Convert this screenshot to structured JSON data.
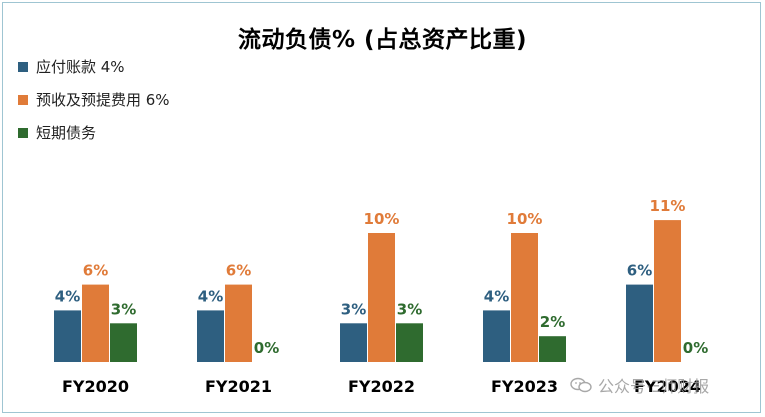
{
  "chart_data": {
    "type": "bar",
    "title": "流动负债% (占总资产比重)",
    "categories": [
      "FY2020",
      "FY2021",
      "FY2022",
      "FY2023",
      "FY2024"
    ],
    "series": [
      {
        "name": "应付账款 4%",
        "color": "#2e5f80",
        "values": [
          4,
          4,
          3,
          4,
          6
        ],
        "labels": [
          "4%",
          "4%",
          "3%",
          "4%",
          "6%"
        ]
      },
      {
        "name": "预收及预提费用 6%",
        "color": "#e07b39",
        "values": [
          6,
          6,
          10,
          10,
          11
        ],
        "labels": [
          "6%",
          "6%",
          "10%",
          "10%",
          "11%"
        ]
      },
      {
        "name": "短期债务",
        "color": "#2f6b2f",
        "values": [
          3,
          0,
          3,
          2,
          0
        ],
        "labels": [
          "3%",
          "0%",
          "3%",
          "2%",
          "0%"
        ]
      }
    ],
    "ylim": [
      0,
      11
    ],
    "legend_position": "top-left",
    "grid": false
  },
  "watermark": "公众号·Ξ师财报"
}
